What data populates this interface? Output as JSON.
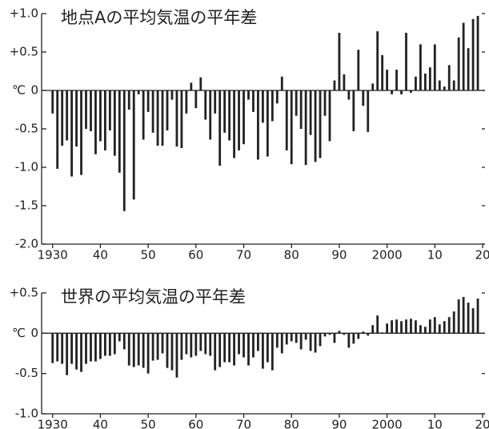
{
  "chart_data": [
    {
      "type": "bar",
      "title": "地点Aの平均気温の平年差",
      "ylabel": "℃",
      "color": "#222222",
      "x": [
        1930,
        1931,
        1932,
        1933,
        1934,
        1935,
        1936,
        1937,
        1938,
        1939,
        1940,
        1941,
        1942,
        1943,
        1944,
        1945,
        1946,
        1947,
        1948,
        1949,
        1950,
        1951,
        1952,
        1953,
        1954,
        1955,
        1956,
        1957,
        1958,
        1959,
        1960,
        1961,
        1962,
        1963,
        1964,
        1965,
        1966,
        1967,
        1968,
        1969,
        1970,
        1971,
        1972,
        1973,
        1974,
        1975,
        1976,
        1977,
        1978,
        1979,
        1980,
        1981,
        1982,
        1983,
        1984,
        1985,
        1986,
        1987,
        1988,
        1989,
        1990,
        1991,
        1992,
        1993,
        1994,
        1995,
        1996,
        1997,
        1998,
        1999,
        2000,
        2001,
        2002,
        2003,
        2004,
        2005,
        2006,
        2007,
        2008,
        2009,
        2010,
        2011,
        2012,
        2013,
        2014,
        2015,
        2016,
        2017,
        2018,
        2019
      ],
      "values": [
        -0.3,
        -1.02,
        -0.72,
        -0.65,
        -1.12,
        -0.73,
        -1.1,
        -0.5,
        -0.53,
        -0.83,
        -0.66,
        -0.78,
        -0.52,
        -0.85,
        -1.07,
        -1.57,
        -0.25,
        -1.42,
        -0.05,
        -0.64,
        -0.28,
        -0.55,
        -0.72,
        -0.72,
        -0.52,
        -0.12,
        -0.73,
        -0.75,
        -0.3,
        0.1,
        -0.23,
        0.17,
        -0.38,
        -0.64,
        -0.3,
        -0.98,
        -0.55,
        -0.65,
        -0.88,
        -0.78,
        -0.7,
        -0.12,
        -0.28,
        -0.9,
        -0.42,
        -0.86,
        -0.4,
        -0.17,
        0.18,
        -0.78,
        -0.96,
        -0.33,
        -0.5,
        -0.97,
        -0.58,
        -0.93,
        -0.88,
        -0.33,
        -0.66,
        0.13,
        0.75,
        0.21,
        -0.12,
        -0.53,
        0.53,
        -0.2,
        -0.54,
        0.09,
        0.77,
        0.46,
        0.27,
        -0.05,
        0.27,
        -0.05,
        0.75,
        -0.03,
        0.18,
        0.6,
        0.22,
        0.3,
        0.6,
        0.13,
        0.05,
        0.33,
        0.13,
        0.69,
        0.88,
        0.55,
        0.93,
        0.97
      ],
      "xlim": [
        1927.7,
        2020.5
      ],
      "xticks": [
        1930,
        {
          "value": 1940,
          "label": "40"
        },
        {
          "value": 1950,
          "label": "50"
        },
        {
          "value": 1960,
          "label": "60"
        },
        {
          "value": 1970,
          "label": "70"
        },
        {
          "value": 1980,
          "label": "80"
        },
        {
          "value": 1990,
          "label": "90"
        },
        2000,
        {
          "value": 2010,
          "label": "10"
        },
        {
          "value": 2020,
          "label": "20"
        }
      ],
      "ylim": [
        -2.0,
        1.0
      ],
      "yticks": [
        {
          "value": 1.0,
          "label": "+1.0"
        },
        {
          "value": 0.5,
          "label": "+0.5"
        },
        0,
        -0.5,
        {
          "value": -1.0,
          "label": "-1.0"
        },
        -1.5,
        {
          "value": -2.0,
          "label": "-2.0"
        }
      ]
    },
    {
      "type": "bar",
      "title": "世界の平均気温の平年差",
      "ylabel": "℃",
      "color": "#222222",
      "x": [
        1930,
        1931,
        1932,
        1933,
        1934,
        1935,
        1936,
        1937,
        1938,
        1939,
        1940,
        1941,
        1942,
        1943,
        1944,
        1945,
        1946,
        1947,
        1948,
        1949,
        1950,
        1951,
        1952,
        1953,
        1954,
        1955,
        1956,
        1957,
        1958,
        1959,
        1960,
        1961,
        1962,
        1963,
        1964,
        1965,
        1966,
        1967,
        1968,
        1969,
        1970,
        1971,
        1972,
        1973,
        1974,
        1975,
        1976,
        1977,
        1978,
        1979,
        1980,
        1981,
        1982,
        1983,
        1984,
        1985,
        1986,
        1987,
        1988,
        1989,
        1990,
        1991,
        1992,
        1993,
        1994,
        1995,
        1996,
        1997,
        1998,
        1999,
        2000,
        2001,
        2002,
        2003,
        2004,
        2005,
        2006,
        2007,
        2008,
        2009,
        2010,
        2011,
        2012,
        2013,
        2014,
        2015,
        2016,
        2017,
        2018,
        2019
      ],
      "values": [
        -0.37,
        -0.35,
        -0.38,
        -0.52,
        -0.38,
        -0.45,
        -0.48,
        -0.38,
        -0.35,
        -0.35,
        -0.32,
        -0.28,
        -0.28,
        -0.26,
        -0.1,
        -0.2,
        -0.4,
        -0.42,
        -0.4,
        -0.43,
        -0.5,
        -0.34,
        -0.33,
        -0.25,
        -0.43,
        -0.46,
        -0.55,
        -0.33,
        -0.26,
        -0.3,
        -0.28,
        -0.22,
        -0.26,
        -0.28,
        -0.46,
        -0.42,
        -0.36,
        -0.36,
        -0.4,
        -0.26,
        -0.3,
        -0.4,
        -0.3,
        -0.22,
        -0.44,
        -0.36,
        -0.46,
        -0.18,
        -0.25,
        -0.14,
        -0.1,
        -0.12,
        -0.2,
        -0.08,
        -0.22,
        -0.24,
        -0.16,
        -0.04,
        -0.02,
        -0.12,
        0.03,
        -0.02,
        -0.18,
        -0.13,
        -0.07,
        0.02,
        -0.03,
        0.1,
        0.22,
        0.01,
        0.12,
        0.16,
        0.17,
        0.15,
        0.17,
        0.18,
        0.16,
        0.1,
        0.08,
        0.17,
        0.2,
        0.11,
        0.15,
        0.2,
        0.27,
        0.42,
        0.45,
        0.38,
        0.31,
        0.43
      ],
      "xlim": [
        1927.7,
        2020.5
      ],
      "xticks": [
        1930,
        {
          "value": 1940,
          "label": "40"
        },
        {
          "value": 1950,
          "label": "50"
        },
        {
          "value": 1960,
          "label": "60"
        },
        {
          "value": 1970,
          "label": "70"
        },
        {
          "value": 1980,
          "label": "80"
        },
        {
          "value": 1990,
          "label": "90"
        },
        2000,
        {
          "value": 2010,
          "label": "10"
        },
        {
          "value": 2020,
          "label": "20"
        }
      ],
      "ylim": [
        -1.0,
        0.5
      ],
      "yticks": [
        {
          "value": 0.5,
          "label": "+0.5"
        },
        0,
        -0.5,
        {
          "value": -1.0,
          "label": "-1.0"
        }
      ]
    }
  ]
}
